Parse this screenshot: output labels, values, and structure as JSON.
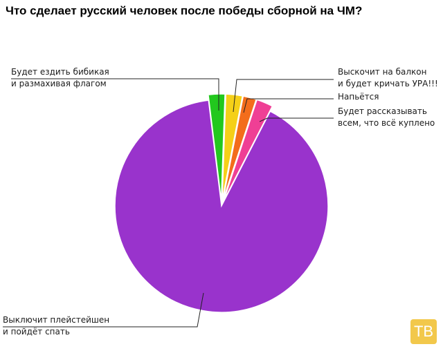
{
  "chart_data": {
    "type": "pie",
    "title": "Что сделает русский человек после победы сборной на ЧМ?",
    "slices": [
      {
        "label_lines": [
          "Будет ездить бибикая",
          "и размахивая флагом"
        ],
        "value": 2.5,
        "color": "#22c81e",
        "exploded": true
      },
      {
        "label_lines": [
          "Выскочит на балкон",
          "и будет кричать УРА!!!"
        ],
        "value": 2.5,
        "color": "#f5d018",
        "exploded": true
      },
      {
        "label_lines": [
          "Напьётся"
        ],
        "value": 2,
        "color": "#f36d1b",
        "exploded": true
      },
      {
        "label_lines": [
          "Будет рассказывать",
          "всем, что всё куплено"
        ],
        "value": 2.5,
        "color": "#ef3f95",
        "exploded": true
      },
      {
        "label_lines": [
          "Выключит плейстейшен",
          "и пойдёт спать"
        ],
        "value": 90.5,
        "color": "#9933cc",
        "exploded": false
      }
    ]
  },
  "logo": {
    "text": "ТВ",
    "color": "#f2c84b"
  }
}
